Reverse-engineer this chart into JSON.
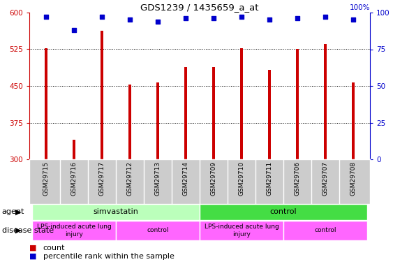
{
  "title": "GDS1239 / 1435659_a_at",
  "samples": [
    "GSM29715",
    "GSM29716",
    "GSM29717",
    "GSM29712",
    "GSM29713",
    "GSM29714",
    "GSM29709",
    "GSM29710",
    "GSM29711",
    "GSM29706",
    "GSM29707",
    "GSM29708"
  ],
  "counts": [
    527,
    340,
    563,
    453,
    457,
    488,
    489,
    527,
    483,
    525,
    535,
    457
  ],
  "percentiles": [
    97,
    88,
    97,
    95,
    94,
    96,
    96,
    97,
    95,
    96,
    97,
    95
  ],
  "ylim_left": [
    300,
    600
  ],
  "ylim_right": [
    0,
    100
  ],
  "yticks_left": [
    300,
    375,
    450,
    525,
    600
  ],
  "yticks_right": [
    0,
    25,
    50,
    75,
    100
  ],
  "bar_color": "#cc0000",
  "scatter_color": "#0000cc",
  "agent_groups": [
    {
      "label": "simvastatin",
      "start": 0,
      "end": 5,
      "color": "#bbffbb"
    },
    {
      "label": "control",
      "start": 6,
      "end": 11,
      "color": "#44dd44"
    }
  ],
  "disease_groups": [
    {
      "label": "LPS-induced acute lung\ninjury",
      "start": 0,
      "end": 2,
      "color": "#ff66ff"
    },
    {
      "label": "control",
      "start": 3,
      "end": 5,
      "color": "#ff66ff"
    },
    {
      "label": "LPS-induced acute lung\ninjury",
      "start": 6,
      "end": 8,
      "color": "#ff66ff"
    },
    {
      "label": "control",
      "start": 9,
      "end": 11,
      "color": "#ff66ff"
    }
  ],
  "legend_count_label": "count",
  "legend_pct_label": "percentile rank within the sample",
  "agent_row_label": "agent",
  "disease_row_label": "disease state",
  "left_axis_color": "#cc0000",
  "right_axis_color": "#0000cc",
  "grid_color": "#888888",
  "sample_bg_color": "#cccccc",
  "bar_width": 0.12
}
